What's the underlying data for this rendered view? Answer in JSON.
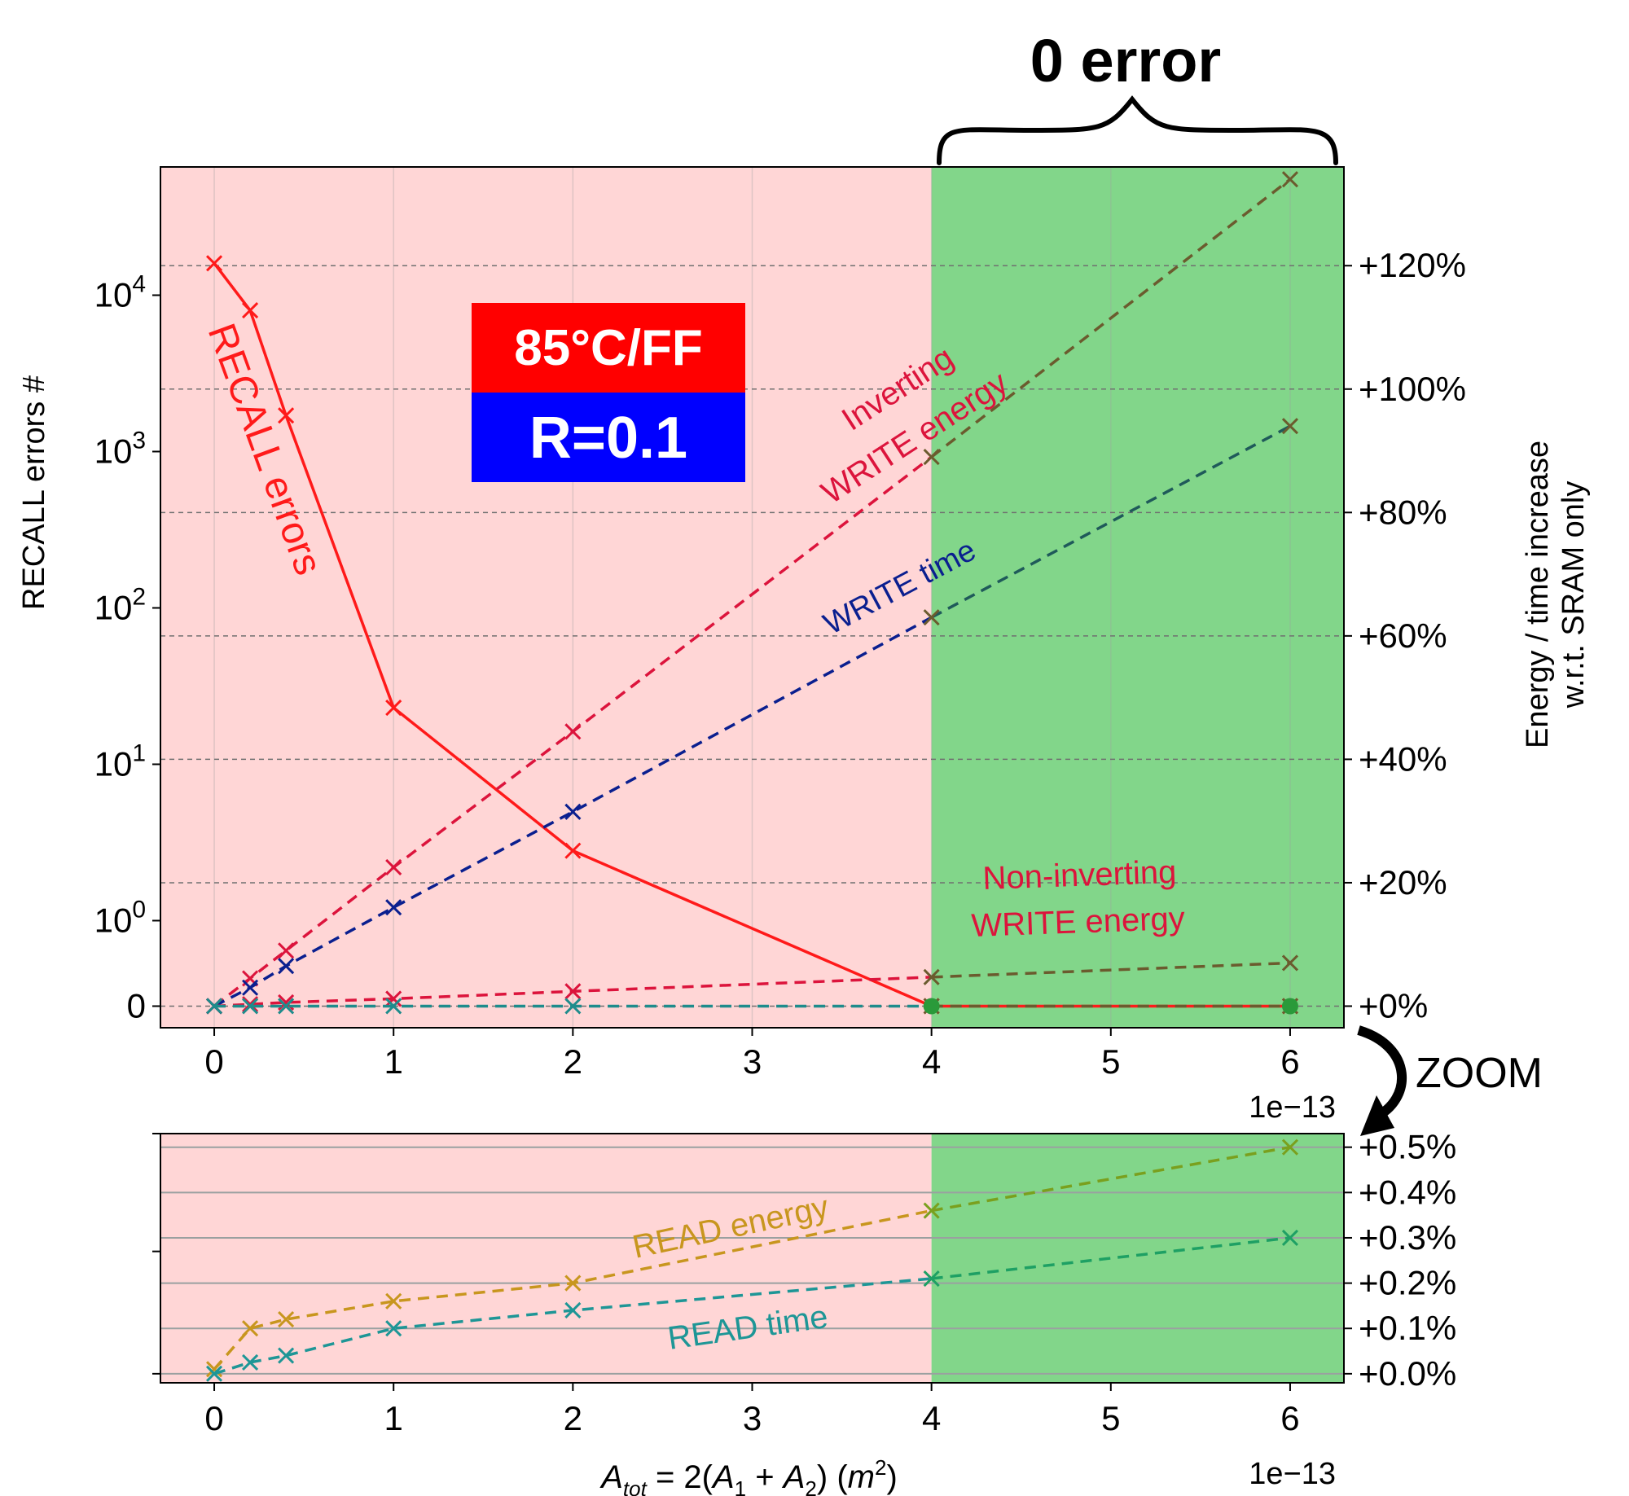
{
  "chart_data": [
    {
      "type": "line",
      "panel": "main",
      "x_scale": "1e-13",
      "xticks": [
        "0",
        "1",
        "2",
        "3",
        "4",
        "5",
        "6"
      ],
      "xlim": [
        -0.3,
        6.3
      ],
      "x_offset_label": "1e−13",
      "left_axis": {
        "label": "RECALL errors #",
        "scale": "symlog",
        "ticks": [
          {
            "value": 0,
            "base": "0",
            "sup": ""
          },
          {
            "value": 1,
            "base": "10",
            "sup": "0"
          },
          {
            "value": 10,
            "base": "10",
            "sup": "1"
          },
          {
            "value": 100,
            "base": "10",
            "sup": "2"
          },
          {
            "value": 1000,
            "base": "10",
            "sup": "3"
          },
          {
            "value": 10000,
            "base": "10",
            "sup": "4"
          }
        ]
      },
      "right_axis": {
        "label_line1": "Energy / time increase",
        "label_line2": "w.r.t. SRAM only",
        "unit": "%",
        "ylim": [
          -3.5,
          136
        ],
        "ticks": [
          {
            "value": 0,
            "label": "+0%"
          },
          {
            "value": 20,
            "label": "+20%"
          },
          {
            "value": 40,
            "label": "+40%"
          },
          {
            "value": 60,
            "label": "+60%"
          },
          {
            "value": 80,
            "label": "+80%"
          },
          {
            "value": 100,
            "label": "+100%"
          },
          {
            "value": 120,
            "label": "+120%"
          }
        ]
      },
      "regions": [
        {
          "x_from": -0.3,
          "x_to": 4,
          "color": "#ffd6d6"
        },
        {
          "x_from": 4,
          "x_to": 6.3,
          "color": "#82d68a"
        }
      ],
      "series": [
        {
          "name": "RECALL errors",
          "axis": "left",
          "color": "#ff1a1a",
          "style": "solid",
          "x": [
            0,
            0.2,
            0.4,
            1,
            2,
            4,
            6
          ],
          "y": [
            16000,
            8000,
            1700,
            23,
            2.8,
            0,
            0
          ]
        },
        {
          "name": "Inverting WRITE energy",
          "axis": "right",
          "color": "#dc143c",
          "style": "dashed",
          "x": [
            0,
            0.2,
            0.4,
            1,
            2,
            4,
            6
          ],
          "y": [
            0,
            4.5,
            9,
            22.5,
            44.5,
            89,
            134
          ]
        },
        {
          "name": "WRITE time",
          "axis": "right",
          "color": "#0a1f8f",
          "style": "dashed",
          "x": [
            0,
            0.2,
            0.4,
            1,
            2,
            4,
            6
          ],
          "y": [
            0,
            3,
            6.5,
            16,
            31.5,
            63,
            94
          ]
        },
        {
          "name": "Non-inverting WRITE energy",
          "axis": "right",
          "color": "#dc143c",
          "style": "dashed",
          "x": [
            0,
            0.2,
            0.4,
            1,
            2,
            4,
            6
          ],
          "y": [
            0,
            0.3,
            0.6,
            1.2,
            2.4,
            4.7,
            7
          ]
        },
        {
          "name": "READ energy / READ time",
          "axis": "right",
          "color": "#1e8c8c",
          "style": "dashed",
          "x": [
            0,
            0.2,
            0.4,
            1,
            2,
            4,
            6
          ],
          "y": [
            0,
            0,
            0,
            0,
            0,
            0,
            0
          ]
        }
      ],
      "annotations": {
        "recall": "RECALL errors",
        "inv1": "Inverting",
        "inv2": "WRITE energy",
        "wtime": "WRITE time",
        "noninv1": "Non-inverting",
        "noninv2": "WRITE energy",
        "zero_error": "0 error",
        "zoom": "ZOOM",
        "badge_top": "85°C/FF",
        "badge_bottom": "R=0.1",
        "badge_top_color": "#ff0000",
        "badge_bottom_color": "#0000ff"
      }
    },
    {
      "type": "line",
      "panel": "zoom",
      "xticks": [
        "0",
        "1",
        "2",
        "3",
        "4",
        "5",
        "6"
      ],
      "xlim": [
        -0.3,
        6.3
      ],
      "xlabel": "A_tot = 2(A_1 + A_2)  (m^2)",
      "x_offset_label": "1e−13",
      "ylim": [
        -0.02,
        0.53
      ],
      "right_ticks": [
        {
          "value": 0.0,
          "label": "+0.0%"
        },
        {
          "value": 0.1,
          "label": "+0.1%"
        },
        {
          "value": 0.2,
          "label": "+0.2%"
        },
        {
          "value": 0.3,
          "label": "+0.3%"
        },
        {
          "value": 0.4,
          "label": "+0.4%"
        },
        {
          "value": 0.5,
          "label": "+0.5%"
        }
      ],
      "series": [
        {
          "name": "READ energy",
          "color": "#c8961e",
          "style": "dashed",
          "x": [
            0,
            0.2,
            0.4,
            1,
            2,
            4,
            6
          ],
          "y": [
            0.01,
            0.1,
            0.12,
            0.16,
            0.2,
            0.36,
            0.5
          ]
        },
        {
          "name": "READ time",
          "color": "#1e9696",
          "style": "dashed",
          "x": [
            0,
            0.2,
            0.4,
            1,
            2,
            4,
            6
          ],
          "y": [
            0.0,
            0.025,
            0.04,
            0.1,
            0.14,
            0.21,
            0.3
          ]
        }
      ]
    }
  ]
}
